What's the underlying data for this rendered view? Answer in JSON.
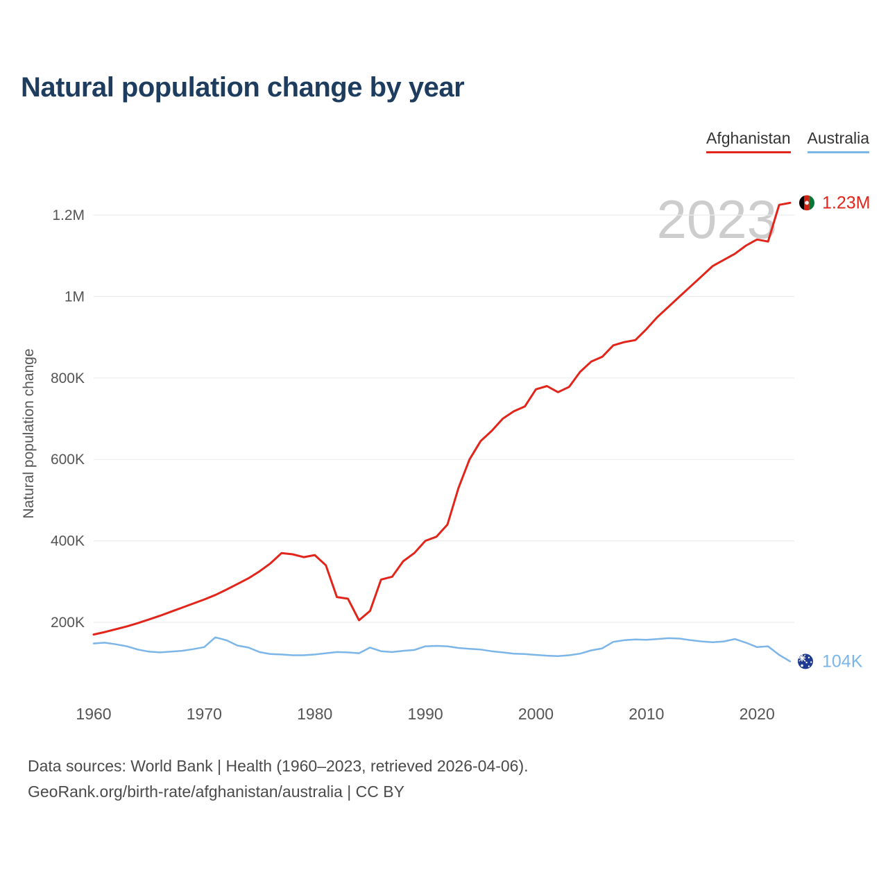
{
  "page": {
    "title": "Natural population change by year"
  },
  "legend": {
    "items": [
      {
        "label": "Afghanistan",
        "color": "#e1251b"
      },
      {
        "label": "Australia",
        "color": "#7cb5e8"
      }
    ]
  },
  "watermark": "2023",
  "footer": {
    "line1": "Data sources: World Bank | Health (1960–2023, retrieved 2026-04-06).",
    "line2": "GeoRank.org/birth-rate/afghanistan/australia | CC BY"
  },
  "chart_data": {
    "type": "line",
    "title": "Natural population change by year",
    "ylabel": "Natural population change",
    "xlabel": "",
    "grid": true,
    "legend_position": "top-right",
    "xticks": [
      1960,
      1970,
      1980,
      1990,
      2000,
      2010,
      2020
    ],
    "yticks": [
      {
        "value": 200000,
        "label": "200K"
      },
      {
        "value": 400000,
        "label": "400K"
      },
      {
        "value": 600000,
        "label": "600K"
      },
      {
        "value": 800000,
        "label": "800K"
      },
      {
        "value": 1000000,
        "label": "1M"
      },
      {
        "value": 1200000,
        "label": "1.2M"
      }
    ],
    "x": [
      1960,
      1961,
      1962,
      1963,
      1964,
      1965,
      1966,
      1967,
      1968,
      1969,
      1970,
      1971,
      1972,
      1973,
      1974,
      1975,
      1976,
      1977,
      1978,
      1979,
      1980,
      1981,
      1982,
      1983,
      1984,
      1985,
      1986,
      1987,
      1988,
      1989,
      1990,
      1991,
      1992,
      1993,
      1994,
      1995,
      1996,
      1997,
      1998,
      1999,
      2000,
      2001,
      2002,
      2003,
      2004,
      2005,
      2006,
      2007,
      2008,
      2009,
      2010,
      2011,
      2012,
      2013,
      2014,
      2015,
      2016,
      2017,
      2018,
      2019,
      2020,
      2021,
      2022,
      2023
    ],
    "series": [
      {
        "name": "Afghanistan",
        "color": "#e1251b",
        "end_label": "1.23M",
        "icon": "afghanistan-flag-icon",
        "values": [
          170000,
          176000,
          183000,
          190000,
          198000,
          207000,
          216000,
          226000,
          236000,
          246000,
          256000,
          267000,
          280000,
          294000,
          308000,
          325000,
          345000,
          370000,
          367000,
          360000,
          365000,
          340000,
          262000,
          258000,
          205000,
          228000,
          305000,
          312000,
          350000,
          370000,
          400000,
          410000,
          440000,
          530000,
          600000,
          645000,
          670000,
          700000,
          718000,
          730000,
          772000,
          780000,
          765000,
          778000,
          815000,
          840000,
          852000,
          880000,
          888000,
          893000,
          920000,
          950000,
          975000,
          1000000,
          1025000,
          1050000,
          1075000,
          1090000,
          1105000,
          1125000,
          1140000,
          1135000,
          1225000,
          1230000
        ]
      },
      {
        "name": "Australia",
        "color": "#7cb5e8",
        "end_label": "104K",
        "icon": "australia-flag-icon",
        "values": [
          148000,
          150000,
          146000,
          141000,
          133000,
          128000,
          126000,
          128000,
          130000,
          134000,
          139000,
          163000,
          156000,
          143000,
          138000,
          127000,
          122000,
          121000,
          119000,
          119000,
          121000,
          124000,
          127000,
          126000,
          124000,
          138000,
          129000,
          127000,
          130000,
          132000,
          141000,
          142000,
          141000,
          137000,
          135000,
          133000,
          129000,
          126000,
          123000,
          122000,
          120000,
          118000,
          117000,
          119000,
          123000,
          131000,
          136000,
          152000,
          156000,
          158000,
          157000,
          159000,
          161000,
          160000,
          156000,
          153000,
          151000,
          153000,
          159000,
          150000,
          139000,
          141000,
          120000,
          104000
        ]
      }
    ]
  }
}
